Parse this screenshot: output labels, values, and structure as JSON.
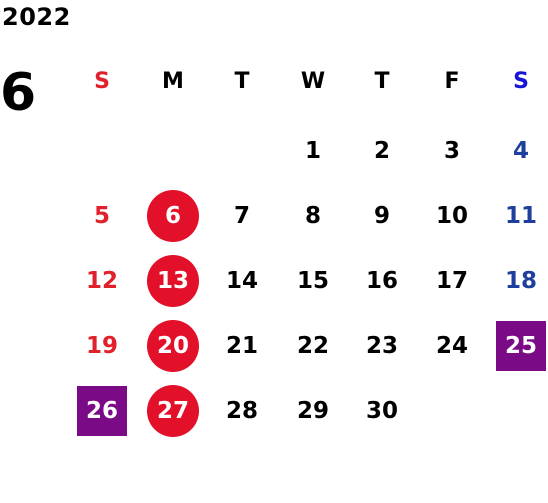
{
  "year": "2022",
  "month": "6",
  "weekday_headers": [
    "S",
    "M",
    "T",
    "W",
    "T",
    "F",
    "S"
  ],
  "weeks": [
    [
      "",
      "",
      "",
      "1",
      "2",
      "3",
      "4"
    ],
    [
      "5",
      "6",
      "7",
      "8",
      "9",
      "10",
      "11"
    ],
    [
      "12",
      "13",
      "14",
      "15",
      "16",
      "17",
      "18"
    ],
    [
      "19",
      "20",
      "21",
      "22",
      "23",
      "24",
      "25"
    ],
    [
      "26",
      "27",
      "28",
      "29",
      "30",
      "",
      ""
    ]
  ],
  "circled_days": [
    "6",
    "13",
    "20",
    "27"
  ],
  "square_days": [
    "25",
    "26"
  ],
  "colors": {
    "sunday": "#e0202a",
    "saturday": "#1f3f9c",
    "circle_highlight": "#e3102a",
    "square_highlight": "#7b0a86"
  }
}
